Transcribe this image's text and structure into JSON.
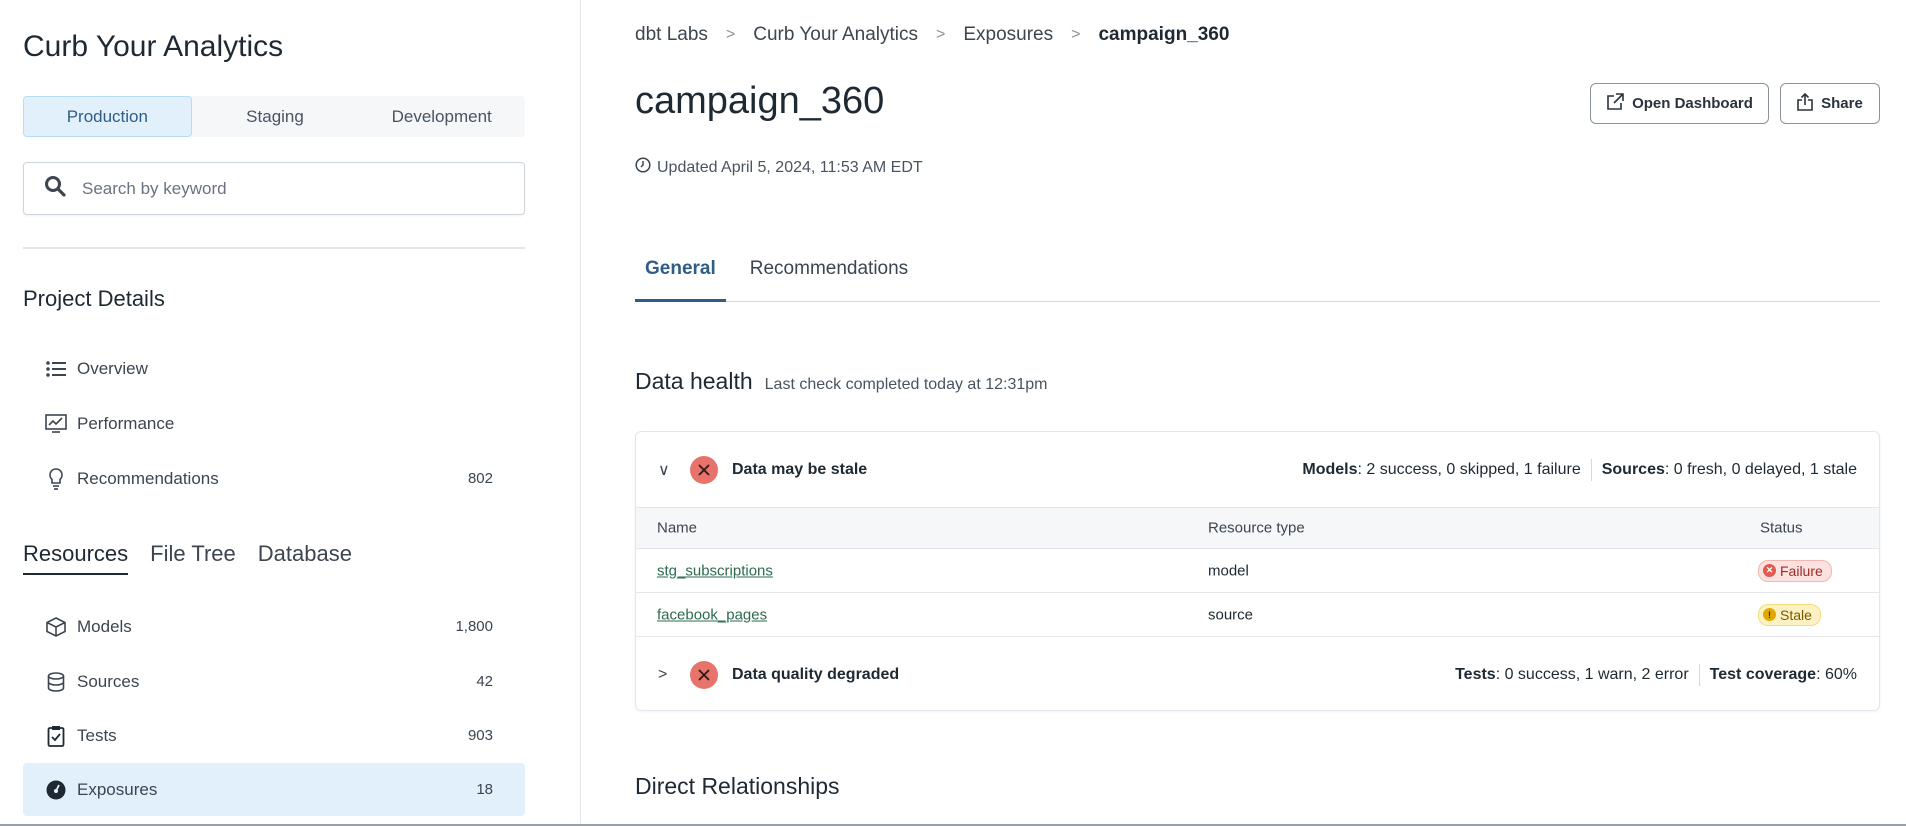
{
  "sidebar": {
    "title": "Curb Your Analytics",
    "environments": [
      "Production",
      "Staging",
      "Development"
    ],
    "active_environment": "Production",
    "search_placeholder": "Search by keyword",
    "project_details_heading": "Project Details",
    "project_items": [
      {
        "label": "Overview",
        "icon": "list-icon"
      },
      {
        "label": "Performance",
        "icon": "chart-monitor-icon"
      },
      {
        "label": "Recommendations",
        "icon": "lightbulb-icon",
        "count": "802"
      }
    ],
    "resource_tabs": [
      "Resources",
      "File Tree",
      "Database"
    ],
    "active_resource_tab": "Resources",
    "resources": [
      {
        "label": "Models",
        "icon": "cube-icon",
        "count": "1,800"
      },
      {
        "label": "Sources",
        "icon": "database-icon",
        "count": "42"
      },
      {
        "label": "Tests",
        "icon": "clipboard-check-icon",
        "count": "903"
      },
      {
        "label": "Exposures",
        "icon": "gauge-icon",
        "count": "18",
        "active": true
      }
    ]
  },
  "breadcrumb": [
    "dbt Labs",
    "Curb Your Analytics",
    "Exposures",
    "campaign_360"
  ],
  "page": {
    "title": "campaign_360",
    "updated": "Updated April 5, 2024, 11:53 AM EDT",
    "open_dashboard": "Open Dashboard",
    "share": "Share",
    "tabs": [
      "General",
      "Recommendations"
    ],
    "active_tab": "General"
  },
  "data_health": {
    "heading": "Data health",
    "subtitle": "Last check completed today at 12:31pm",
    "groups": [
      {
        "label": "Data may be stale",
        "expanded": true,
        "stats": [
          {
            "key": "Models",
            "value": ": 2 success, 0 skipped, 1 failure"
          },
          {
            "key": "Sources",
            "value": ": 0 fresh, 0 delayed, 1 stale"
          }
        ]
      },
      {
        "label": "Data quality degraded",
        "expanded": false,
        "stats": [
          {
            "key": "Tests",
            "value": ": 0 success, 1 warn, 2 error"
          },
          {
            "key": "Test coverage",
            "value": ": 60%"
          }
        ]
      }
    ],
    "columns": [
      "Name",
      "Resource type",
      "Status"
    ],
    "rows": [
      {
        "name": "stg_subscriptions",
        "type": "model",
        "status": "Failure"
      },
      {
        "name": "facebook_pages",
        "type": "source",
        "status": "Stale"
      }
    ]
  },
  "direct_relationships_heading": "Direct Relationships",
  "colors": {
    "accent": "#2f5d86",
    "failure": "#e8736b",
    "stale": "#f2c94c",
    "link": "#2d6a4f",
    "active_bg": "#e2f0fb"
  }
}
